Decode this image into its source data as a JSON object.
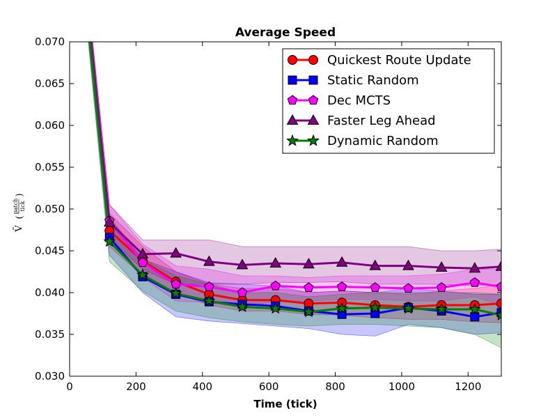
{
  "chart_data": {
    "type": "line",
    "title": "Average Speed",
    "xlabel": "Time (tick)",
    "ylabel": {
      "symbol": "V̄",
      "numerator": "patch",
      "denominator": "tick"
    },
    "xlim": [
      0,
      1300
    ],
    "ylim": [
      0.03,
      0.07
    ],
    "xticks": [
      0,
      200,
      400,
      600,
      800,
      1000,
      1200
    ],
    "yticks": [
      0.03,
      0.035,
      0.04,
      0.045,
      0.05,
      0.055,
      0.06,
      0.065,
      0.07
    ],
    "ytick_labels": [
      "0.030",
      "0.035",
      "0.040",
      "0.045",
      "0.050",
      "0.055",
      "0.060",
      "0.065",
      "0.070"
    ],
    "xtick_labels": [
      "0",
      "200",
      "400",
      "600",
      "800",
      "1000",
      "1200"
    ],
    "legend": {
      "placement": "top-right"
    },
    "series": [
      {
        "name": "Quickest Route Update",
        "color": "#ff0000",
        "marker": "circle",
        "x": [
          0,
          120,
          220,
          320,
          420,
          520,
          620,
          720,
          820,
          920,
          1020,
          1120,
          1220,
          1300
        ],
        "y": [
          0.095,
          0.0474,
          0.0438,
          0.0413,
          0.0398,
          0.0391,
          0.0391,
          0.0387,
          0.0388,
          0.0385,
          0.0383,
          0.0385,
          0.0385,
          0.0387
        ],
        "band_upper": [
          0.097,
          0.0495,
          0.0455,
          0.0425,
          0.041,
          0.0405,
          0.0405,
          0.04,
          0.0402,
          0.04,
          0.0398,
          0.0402,
          0.0405,
          0.041
        ],
        "band_lower": [
          0.093,
          0.0455,
          0.042,
          0.04,
          0.0385,
          0.0378,
          0.0378,
          0.0374,
          0.0373,
          0.037,
          0.0368,
          0.0368,
          0.0365,
          0.0364
        ]
      },
      {
        "name": "Static Random",
        "color": "#0000ff",
        "marker": "square",
        "x": [
          0,
          120,
          220,
          320,
          420,
          520,
          620,
          720,
          820,
          920,
          1020,
          1120,
          1220,
          1300
        ],
        "y": [
          0.095,
          0.0466,
          0.0419,
          0.0398,
          0.0389,
          0.0386,
          0.0384,
          0.0378,
          0.0374,
          0.0375,
          0.0382,
          0.0378,
          0.0371,
          0.0376
        ],
        "band_upper": [
          0.097,
          0.049,
          0.044,
          0.0425,
          0.0412,
          0.041,
          0.0408,
          0.04,
          0.0402,
          0.04,
          0.0405,
          0.0402,
          0.0398,
          0.0398
        ],
        "band_lower": [
          0.093,
          0.0445,
          0.04,
          0.0371,
          0.0366,
          0.0363,
          0.036,
          0.0357,
          0.035,
          0.0348,
          0.0362,
          0.0358,
          0.035,
          0.0352
        ]
      },
      {
        "name": "Dec MCTS",
        "color": "#ff00ff",
        "marker": "pentagon",
        "x": [
          0,
          120,
          220,
          320,
          420,
          520,
          620,
          720,
          820,
          920,
          1020,
          1120,
          1220,
          1300
        ],
        "y": [
          0.095,
          0.0486,
          0.0436,
          0.041,
          0.0407,
          0.04,
          0.0408,
          0.0406,
          0.0407,
          0.0406,
          0.0405,
          0.0406,
          0.0412,
          0.0407
        ],
        "band_upper": [
          0.097,
          0.0505,
          0.0458,
          0.0432,
          0.0428,
          0.042,
          0.042,
          0.0418,
          0.042,
          0.042,
          0.042,
          0.0422,
          0.0428,
          0.0428
        ],
        "band_lower": [
          0.093,
          0.0468,
          0.0418,
          0.039,
          0.0388,
          0.0382,
          0.039,
          0.039,
          0.0392,
          0.0392,
          0.039,
          0.039,
          0.0395,
          0.0385
        ]
      },
      {
        "name": "Faster Leg Ahead",
        "color": "#800080",
        "marker": "triangle",
        "x": [
          0,
          120,
          220,
          320,
          420,
          520,
          620,
          720,
          820,
          920,
          1020,
          1120,
          1220,
          1300
        ],
        "y": [
          0.095,
          0.0484,
          0.0446,
          0.0447,
          0.0437,
          0.0433,
          0.0435,
          0.0434,
          0.0436,
          0.0432,
          0.0432,
          0.043,
          0.0429,
          0.0431
        ],
        "band_upper": [
          0.097,
          0.0505,
          0.0463,
          0.0463,
          0.0463,
          0.0455,
          0.0455,
          0.0455,
          0.0455,
          0.0455,
          0.0455,
          0.045,
          0.045,
          0.0452
        ],
        "band_lower": [
          0.093,
          0.0465,
          0.0428,
          0.041,
          0.041,
          0.041,
          0.0412,
          0.0412,
          0.0413,
          0.041,
          0.041,
          0.041,
          0.0408,
          0.041
        ]
      },
      {
        "name": "Dynamic Random",
        "color": "#008000",
        "marker": "star",
        "x": [
          0,
          120,
          220,
          320,
          420,
          520,
          620,
          720,
          820,
          920,
          1020,
          1120,
          1220,
          1300
        ],
        "y": [
          0.095,
          0.0461,
          0.0421,
          0.0399,
          0.039,
          0.0383,
          0.0381,
          0.0377,
          0.0381,
          0.0382,
          0.0381,
          0.038,
          0.038,
          0.0373
        ],
        "band_upper": [
          0.097,
          0.0485,
          0.044,
          0.042,
          0.041,
          0.04,
          0.04,
          0.0395,
          0.0398,
          0.04,
          0.04,
          0.04,
          0.04,
          0.0398
        ],
        "band_lower": [
          0.093,
          0.0437,
          0.0402,
          0.0378,
          0.037,
          0.0365,
          0.0362,
          0.036,
          0.0362,
          0.0362,
          0.036,
          0.0358,
          0.035,
          0.0334
        ]
      }
    ]
  }
}
